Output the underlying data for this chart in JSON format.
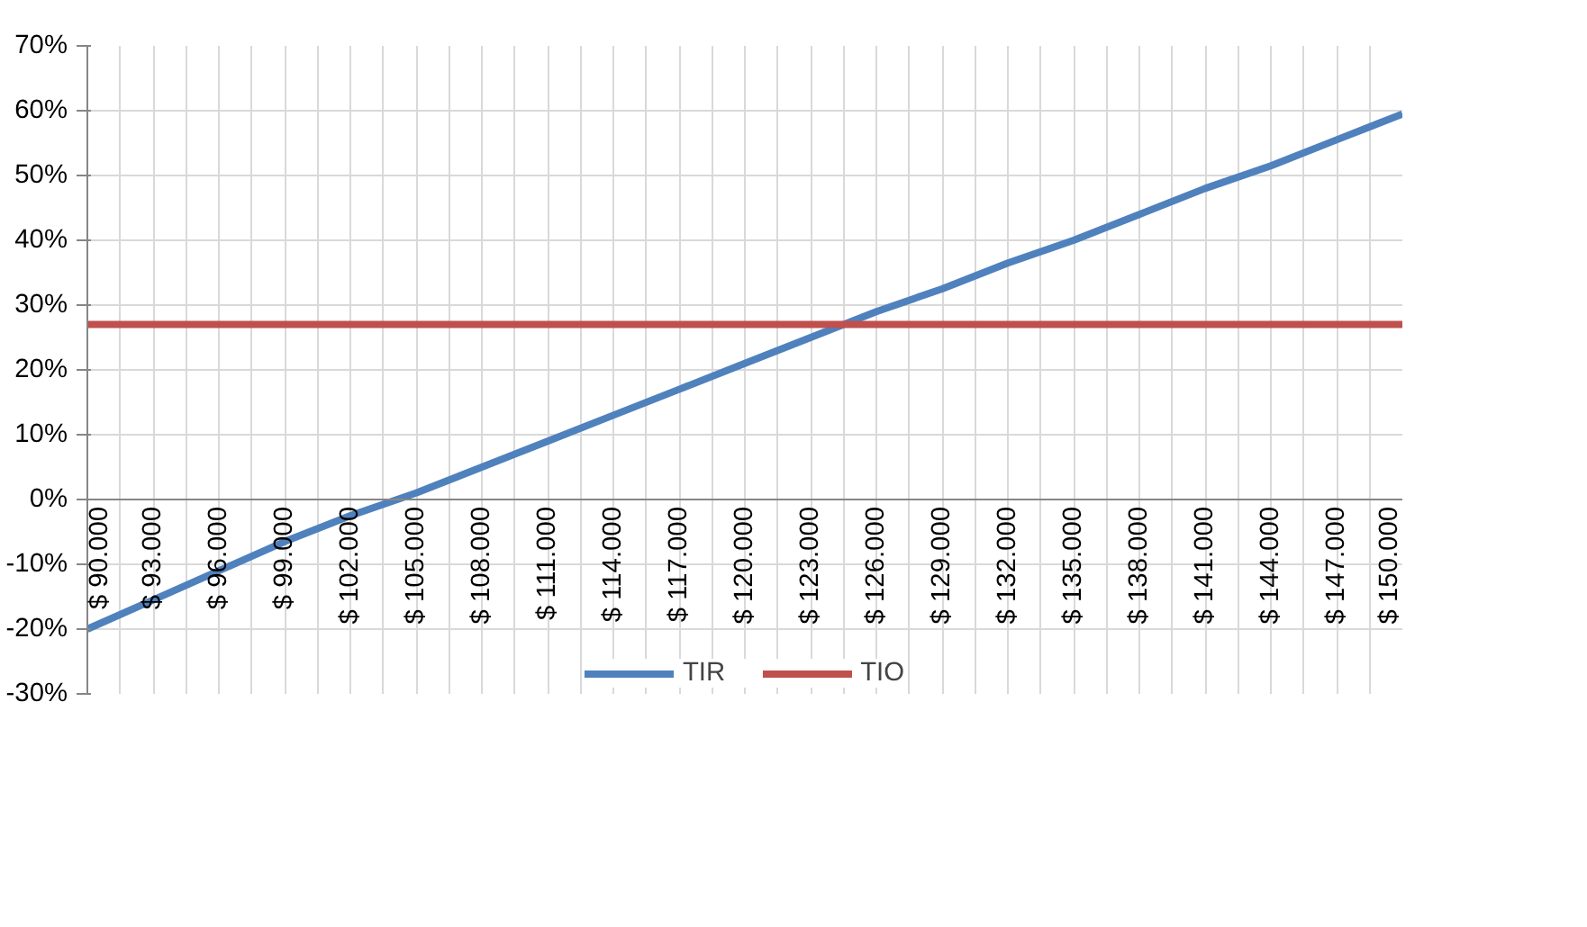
{
  "chart_data": {
    "type": "line",
    "xlim": [
      90000,
      150000
    ],
    "xticks": [
      {
        "value": 90000,
        "label": "$ 90.000"
      },
      {
        "value": 91500,
        "label": null
      },
      {
        "value": 93000,
        "label": "$ 93.000"
      },
      {
        "value": 94500,
        "label": null
      },
      {
        "value": 96000,
        "label": "$ 96.000"
      },
      {
        "value": 97500,
        "label": null
      },
      {
        "value": 99000,
        "label": "$ 99.000"
      },
      {
        "value": 100500,
        "label": null
      },
      {
        "value": 102000,
        "label": "$ 102.000"
      },
      {
        "value": 103500,
        "label": null
      },
      {
        "value": 105000,
        "label": "$ 105.000"
      },
      {
        "value": 106500,
        "label": null
      },
      {
        "value": 108000,
        "label": "$ 108.000"
      },
      {
        "value": 109500,
        "label": null
      },
      {
        "value": 111000,
        "label": "$ 111.000"
      },
      {
        "value": 112500,
        "label": null
      },
      {
        "value": 114000,
        "label": "$ 114.000"
      },
      {
        "value": 115500,
        "label": null
      },
      {
        "value": 117000,
        "label": "$ 117.000"
      },
      {
        "value": 118500,
        "label": null
      },
      {
        "value": 120000,
        "label": "$ 120.000"
      },
      {
        "value": 121500,
        "label": null
      },
      {
        "value": 123000,
        "label": "$ 123.000"
      },
      {
        "value": 124500,
        "label": null
      },
      {
        "value": 126000,
        "label": "$ 126.000"
      },
      {
        "value": 127500,
        "label": null
      },
      {
        "value": 129000,
        "label": "$ 129.000"
      },
      {
        "value": 130500,
        "label": null
      },
      {
        "value": 132000,
        "label": "$ 132.000"
      },
      {
        "value": 133500,
        "label": null
      },
      {
        "value": 135000,
        "label": "$ 135.000"
      },
      {
        "value": 136500,
        "label": null
      },
      {
        "value": 138000,
        "label": "$ 138.000"
      },
      {
        "value": 139500,
        "label": null
      },
      {
        "value": 141000,
        "label": "$ 141.000"
      },
      {
        "value": 142500,
        "label": null
      },
      {
        "value": 144000,
        "label": "$ 144.000"
      },
      {
        "value": 145500,
        "label": null
      },
      {
        "value": 147000,
        "label": "$ 147.000"
      },
      {
        "value": 148500,
        "label": null
      },
      {
        "value": 150000,
        "label": "$ 150.000"
      }
    ],
    "ylim": [
      -30,
      70
    ],
    "yticks": [
      {
        "value": -30,
        "label": "-30%"
      },
      {
        "value": -20,
        "label": "-20%"
      },
      {
        "value": -10,
        "label": "-10%"
      },
      {
        "value": 0,
        "label": "0%"
      },
      {
        "value": 10,
        "label": "10%"
      },
      {
        "value": 20,
        "label": "20%"
      },
      {
        "value": 30,
        "label": "30%"
      },
      {
        "value": 40,
        "label": "40%"
      },
      {
        "value": 50,
        "label": "50%"
      },
      {
        "value": 60,
        "label": "60%"
      },
      {
        "value": 70,
        "label": "70%"
      }
    ],
    "x": [
      90000,
      93000,
      96000,
      99000,
      102000,
      105000,
      108000,
      111000,
      114000,
      117000,
      120000,
      123000,
      126000,
      129000,
      132000,
      135000,
      138000,
      141000,
      144000,
      147000,
      150000
    ],
    "series": [
      {
        "name": "TIR",
        "color": "#4f81bd",
        "values": [
          -20,
          -15.5,
          -11,
          -6.5,
          -2.5,
          1,
          5,
          9,
          13,
          17,
          21,
          25,
          29,
          32.5,
          36.5,
          40,
          44,
          48,
          51.5,
          55.5,
          59.5
        ]
      },
      {
        "name": "TIO",
        "color": "#c0504d",
        "values": [
          27,
          27,
          27,
          27,
          27,
          27,
          27,
          27,
          27,
          27,
          27,
          27,
          27,
          27,
          27,
          27,
          27,
          27,
          27,
          27,
          27
        ]
      }
    ],
    "grid": true,
    "legend": "bottom",
    "marker": "none",
    "line_style": "solid"
  }
}
